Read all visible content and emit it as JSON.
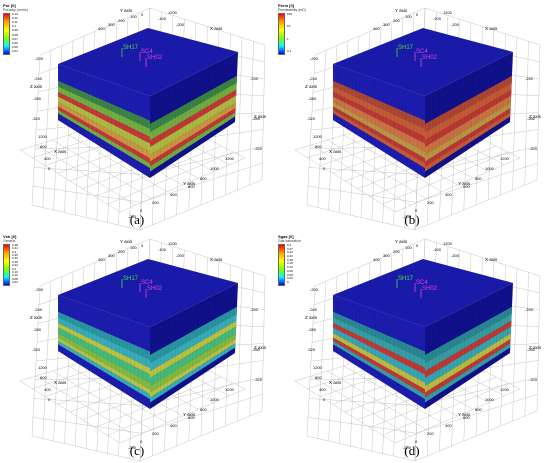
{
  "colors": {
    "background": "#ffffff",
    "block": "#1c1cad",
    "block_top": "#1a1aa8",
    "block_side": "#10108a",
    "grid": "#b5b5b5",
    "well_green": "#3fe03f",
    "well_magenta": "#e040e0"
  },
  "panels": [
    {
      "caption": "(a)",
      "legend": {
        "title": "Por [0]",
        "subtitle": "Porosity (m³/m³)",
        "ticks": [
          "0.13",
          "0.12",
          "0.11",
          "0.1",
          "0.09",
          "0.08",
          "0.07",
          "0.06",
          "0.05",
          "0.04"
        ],
        "gradient": [
          "#ff0000",
          "#ffa500",
          "#ffff00",
          "#7fff00",
          "#00ffff",
          "#0000ff"
        ]
      },
      "property_palette": [
        "#3c8c3c",
        "#7ab83a",
        "#b8c83a",
        "#d8a03a",
        "#d23a2a"
      ],
      "axes": {
        "y_axis": "Y axis",
        "x_axis": "X axis",
        "z_axis": "Z axis",
        "z_axis_right": "Z axis",
        "x_axis_right": "X axis",
        "y_axis_bottom": "Y axis"
      },
      "ticks_top": [
        "400",
        "300",
        "200",
        "100",
        "0",
        "-100",
        "-200",
        "1200"
      ],
      "ticks_left": [
        "-200",
        "-240",
        "-280",
        "-320",
        "1200",
        "800",
        "400",
        "0"
      ],
      "ticks_right": [
        "-240",
        "-280",
        "-320"
      ],
      "ticks_bottom": [
        "1200",
        "1000",
        "800",
        "600",
        "400",
        "200",
        "0",
        "-200"
      ],
      "wells": [
        "SH17",
        "SC4",
        "SH02"
      ]
    },
    {
      "caption": "(b)",
      "legend": {
        "title": "Perm [0]",
        "subtitle": "Permeability (mD)",
        "ticks": [
          "100",
          "10",
          "1",
          "0.1"
        ],
        "gradient": [
          "#ff0000",
          "#ffa500",
          "#ffff00",
          "#7fff00",
          "#00ffff",
          "#0000ff"
        ]
      },
      "property_palette": [
        "#b84a2a",
        "#d0602a",
        "#d87a3a",
        "#c8a03a",
        "#c83a2a"
      ],
      "axes": {
        "y_axis": "Y axis",
        "x_axis": "X axis",
        "z_axis": "Z axis",
        "z_axis_right": "Z axis",
        "x_axis_right": "X axis",
        "y_axis_bottom": "Y axis"
      },
      "ticks_top": [
        "400",
        "300",
        "200",
        "100",
        "0",
        "-100",
        "-200",
        "1200"
      ],
      "ticks_left": [
        "-200",
        "-240",
        "-280",
        "-320",
        "1200",
        "800",
        "400",
        "0"
      ],
      "ticks_right": [
        "-240",
        "-280",
        "-320"
      ],
      "ticks_bottom": [
        "1200",
        "1000",
        "800",
        "600",
        "400",
        "200",
        "0",
        "-200"
      ],
      "wells": [
        "SH17",
        "SC4",
        "SH02"
      ]
    },
    {
      "caption": "(c)",
      "legend": {
        "title": "Vsh [0]",
        "subtitle": "Generic",
        "ticks": [
          "0.48",
          "0.44",
          "0.4",
          "0.36",
          "0.32",
          "0.28",
          "0.24",
          "0.2",
          "0.16",
          "0.12",
          "0.08",
          "0.04"
        ],
        "gradient": [
          "#ff0000",
          "#ffa500",
          "#ffff00",
          "#7fff00",
          "#00ffff",
          "#0000ff"
        ]
      },
      "property_palette": [
        "#2aa0a0",
        "#3ab8b8",
        "#4ac878",
        "#8ac83a",
        "#c8d03a"
      ],
      "axes": {
        "y_axis": "Y axis",
        "x_axis": "X axis",
        "z_axis": "Z axis",
        "z_axis_right": "Z axis",
        "x_axis_right": "X axis",
        "y_axis_bottom": "Y axis"
      },
      "ticks_top": [
        "400",
        "300",
        "200",
        "100",
        "0",
        "-100",
        "-200",
        "1200"
      ],
      "ticks_left": [
        "-200",
        "-240",
        "-280",
        "-320",
        "1200",
        "800",
        "400",
        "0"
      ],
      "ticks_right": [
        "-240",
        "-280",
        "-320"
      ],
      "ticks_bottom": [
        "1200",
        "1000",
        "800",
        "600",
        "400",
        "200",
        "0",
        "-200"
      ],
      "wells": [
        "SH17",
        "SC4",
        "SH02"
      ]
    },
    {
      "caption": "(d)",
      "legend": {
        "title": "Sgas [0]",
        "subtitle": "Gas saturation",
        "ticks": [
          "0.3",
          "0.27",
          "0.24",
          "0.21",
          "0.18",
          "0.15",
          "0.12",
          "0.09",
          "0.06",
          "0.03",
          "0"
        ],
        "gradient": [
          "#ff0000",
          "#ffa500",
          "#ffff00",
          "#7fff00",
          "#00ffff",
          "#0000ff"
        ]
      },
      "property_palette": [
        "#2a9090",
        "#3aa8a0",
        "#3ab0b0",
        "#c8c83a",
        "#d03a2a"
      ],
      "axes": {
        "y_axis": "Y axis",
        "x_axis": "X axis",
        "z_axis": "Z axis",
        "z_axis_right": "Z axis",
        "x_axis_right": "X axis",
        "y_axis_bottom": "Y axis"
      },
      "ticks_top": [
        "400",
        "300",
        "200",
        "100",
        "0",
        "-100",
        "-200",
        "1200"
      ],
      "ticks_left": [
        "-200",
        "-240",
        "-280",
        "-320",
        "1200",
        "800",
        "400",
        "0"
      ],
      "ticks_right": [
        "-240",
        "-280",
        "-320"
      ],
      "ticks_bottom": [
        "1200",
        "1000",
        "800",
        "600",
        "400",
        "200",
        "0",
        "-200"
      ],
      "wells": [
        "SH17",
        "SC4",
        "SH02"
      ]
    }
  ]
}
